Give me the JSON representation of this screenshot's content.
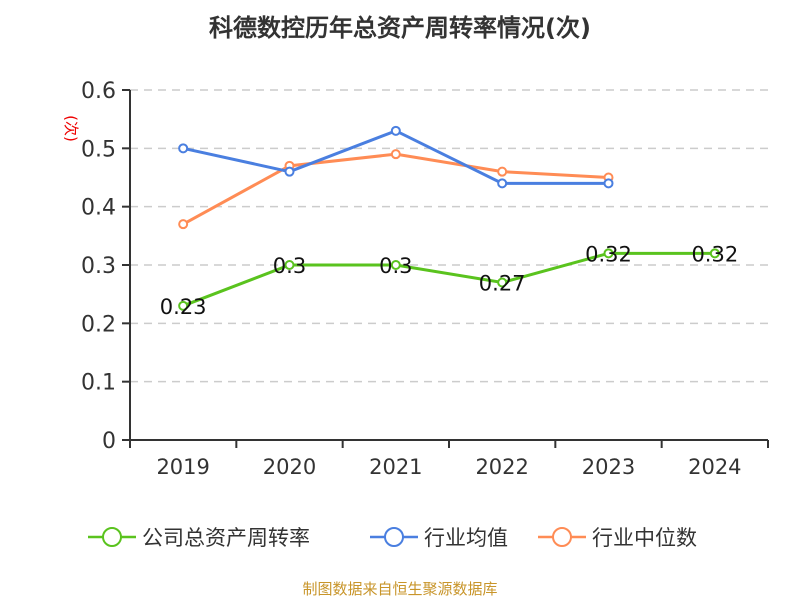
{
  "chart_data": {
    "type": "line",
    "title": "科德数控历年总资产周转率情况(次)",
    "ylabel": "(次)",
    "categories": [
      "2019",
      "2020",
      "2021",
      "2022",
      "2023",
      "2024"
    ],
    "ylim": [
      0,
      0.6
    ],
    "yticks": [
      "0",
      "0.1",
      "0.2",
      "0.3",
      "0.4",
      "0.5",
      "0.6"
    ],
    "grid": true,
    "legend_position": "bottom",
    "series": [
      {
        "name": "公司总资产周转率",
        "color": "#5ac31e",
        "values": [
          0.23,
          0.3,
          0.3,
          0.27,
          0.32,
          0.32
        ],
        "labels": [
          "0.23",
          "0.3",
          "0.3",
          "0.27",
          "0.32",
          "0.32"
        ]
      },
      {
        "name": "行业均值",
        "color": "#4a7fe0",
        "values": [
          0.5,
          0.46,
          0.53,
          0.44,
          0.44,
          null
        ]
      },
      {
        "name": "行业中位数",
        "color": "#ff8c55",
        "values": [
          0.37,
          0.47,
          0.49,
          0.46,
          0.45,
          null
        ]
      }
    ]
  },
  "source": "制图数据来自恒生聚源数据库"
}
